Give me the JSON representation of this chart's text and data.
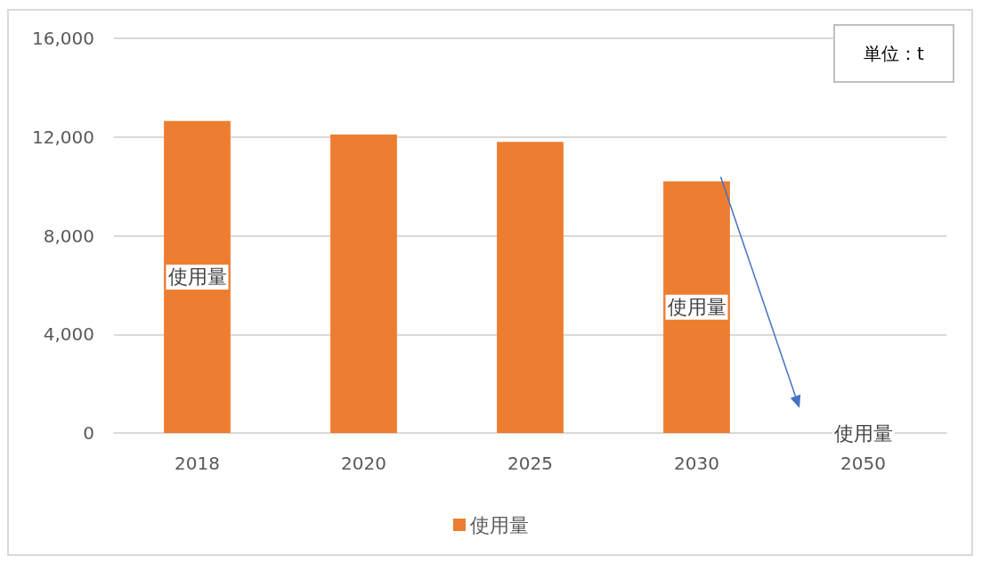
{
  "chart_data": {
    "type": "bar",
    "categories": [
      "2018",
      "2020",
      "2025",
      "2030",
      "2050"
    ],
    "series": [
      {
        "name": "使用量",
        "color": "#ed7d31",
        "values": [
          12650,
          12100,
          11800,
          10200,
          0
        ],
        "value_labels": [
          "使用量",
          null,
          null,
          "使用量",
          "使用量"
        ]
      }
    ],
    "ylim": [
      0,
      16000
    ],
    "yticks": [
      {
        "value": 0,
        "label": "0"
      },
      {
        "value": 4000,
        "label": "4,000"
      },
      {
        "value": 8000,
        "label": "8,000"
      },
      {
        "value": 12000,
        "label": "12,000"
      },
      {
        "value": 16000,
        "label": "16,000"
      }
    ],
    "grid": "y",
    "legend": "bottom",
    "annotations": [
      "単位：t"
    ]
  }
}
